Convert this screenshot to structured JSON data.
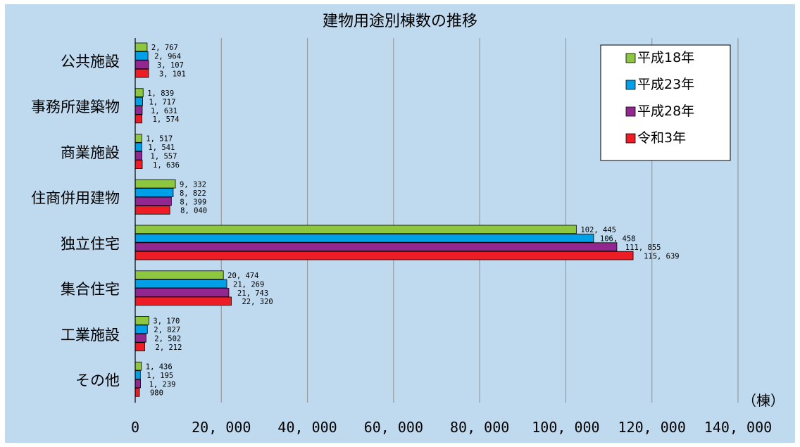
{
  "chart_data": {
    "type": "bar",
    "orientation": "horizontal",
    "title": "建物用途別棟数の推移",
    "unit_label": "（棟）",
    "categories": [
      "公共施設",
      "事務所建築物",
      "商業施設",
      "住商併用建物",
      "独立住宅",
      "集合住宅",
      "工業施設",
      "その他"
    ],
    "series": [
      {
        "name": "平成18年",
        "color": "#8dc63f",
        "values": [
          2767,
          1839,
          1517,
          9332,
          102445,
          20474,
          3170,
          1436
        ],
        "labels": [
          "2, 767",
          "1, 839",
          "1, 517",
          "9, 332",
          "102, 445",
          "20, 474",
          "3, 170",
          "1, 436"
        ]
      },
      {
        "name": "平成23年",
        "color": "#00a0e9",
        "values": [
          2964,
          1717,
          1541,
          8822,
          106458,
          21269,
          2827,
          1195
        ],
        "labels": [
          "2, 964",
          "1, 717",
          "1, 541",
          "8, 822",
          "106, 458",
          "21, 269",
          "2, 827",
          "1, 195"
        ]
      },
      {
        "name": "平成28年",
        "color": "#92278f",
        "values": [
          3107,
          1631,
          1557,
          8399,
          111855,
          21743,
          2502,
          1239
        ],
        "labels": [
          "3, 107",
          "1, 631",
          "1, 557",
          "8, 399",
          "111, 855",
          "21, 743",
          "2, 502",
          "1, 239"
        ]
      },
      {
        "name": "令和3年",
        "color": "#ee1c25",
        "values": [
          3101,
          1574,
          1636,
          8040,
          115639,
          22320,
          2212,
          980
        ],
        "labels": [
          "3, 101",
          "1, 574",
          "1, 636",
          "8, 040",
          "115, 639",
          "22, 320",
          "2, 212",
          "980"
        ]
      }
    ],
    "x_ticks": [
      0,
      20000,
      40000,
      60000,
      80000,
      100000,
      120000,
      140000
    ],
    "x_tick_labels": [
      "0",
      "20, 000",
      "40, 000",
      "60, 000",
      "80, 000",
      "100, 000",
      "120, 000",
      "140, 000"
    ],
    "xlim": [
      0,
      140000
    ],
    "grid": true,
    "legend_position": "top-right"
  }
}
